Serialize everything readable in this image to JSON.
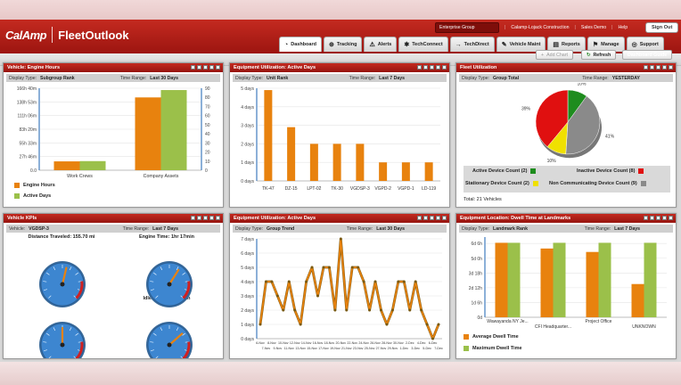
{
  "brand": {
    "company": "CalAmp",
    "product": "FleetOutlook"
  },
  "topbar": {
    "group": "Enterprise Group",
    "account": "Calamp-Lojack Construction",
    "sales": "Sales Demo",
    "help": "Help",
    "signout": "Sign Out"
  },
  "nav": {
    "tabs": [
      {
        "label": "Dashboard",
        "icon": "dashboard-icon",
        "glyph": "◔"
      },
      {
        "label": "Tracking",
        "icon": "globe-icon",
        "glyph": "⊕"
      },
      {
        "label": "Alerts",
        "icon": "alert-icon",
        "glyph": "⚠"
      },
      {
        "label": "TechConnect",
        "icon": "tech-icon",
        "glyph": "✱"
      },
      {
        "label": "TechDirect",
        "icon": "arrow-icon",
        "glyph": "→"
      },
      {
        "label": "Vehicle Maint",
        "icon": "wrench-icon",
        "glyph": "✎"
      },
      {
        "label": "Reports",
        "icon": "report-icon",
        "glyph": "▤"
      },
      {
        "label": "Manage",
        "icon": "manage-icon",
        "glyph": "⚑"
      },
      {
        "label": "Support",
        "icon": "support-icon",
        "glyph": "◎"
      }
    ]
  },
  "toolbar": {
    "add_chart": "Add Chart",
    "refresh": "Refresh",
    "guide": "Dashboard Guide"
  },
  "p1": {
    "title": "Vehicle: Engine Hours",
    "k1": "Display Type:",
    "v1": "Subgroup Rank",
    "k2": "Time Range:",
    "v2": "Last 30 Days",
    "legend": [
      "Engine Hours",
      "Active Days"
    ],
    "chart_data": {
      "type": "bar",
      "categories": [
        "Work Crews",
        "Company Assets"
      ],
      "series": [
        {
          "name": "Engine Hours",
          "values": [
            18,
            148
          ],
          "color": "#e8820e"
        },
        {
          "name": "Active Days",
          "values": [
            10,
            88
          ],
          "color": "#9bc04a"
        }
      ],
      "y_left": {
        "ticks": [
          "0.0",
          "27h 46m",
          "55h 33m",
          "83h 20m",
          "111h 06m",
          "138h 53m",
          "166h 40m"
        ],
        "max": 166.67
      },
      "y_right": {
        "ticks": [
          "0",
          "10",
          "20",
          "30",
          "40",
          "50",
          "60",
          "70",
          "80",
          "90"
        ],
        "max": 90
      }
    }
  },
  "p2": {
    "title": "Equipment Utilization: Active Days",
    "k1": "Display Type:",
    "v1": "Unit Rank",
    "k2": "Time Range:",
    "v2": "Last 7 Days",
    "chart_data": {
      "type": "bar",
      "categories": [
        "TK-47",
        "DZ-15",
        "LPT-02",
        "TK-30",
        "VGDSP-3",
        "VGPD-2",
        "VGPD-1",
        "LD-119"
      ],
      "values": [
        4.9,
        2.9,
        2.0,
        2.0,
        2.0,
        1.0,
        1.0,
        1.0
      ],
      "ylim": [
        0,
        5
      ],
      "yticks": [
        "0 days",
        "1 days",
        "2 days",
        "3 days",
        "4 days",
        "5 days"
      ],
      "color": "#e8820e"
    }
  },
  "p3": {
    "title": "Fleet Utilization",
    "k1": "Display Type:",
    "v1": "Group Total",
    "k2": "Time Range:",
    "v2": "YESTERDAY",
    "chart_data": {
      "type": "pie",
      "slices": [
        {
          "name": "Active Device Count",
          "value": 10,
          "label": "10%",
          "color": "#1e8c1e"
        },
        {
          "name": "Non Communicating Device Count",
          "value": 41,
          "label": "41%",
          "color": "#8a8a8a"
        },
        {
          "name": "Stationary Device Count",
          "value": 10,
          "label": "10%",
          "color": "#f0e000"
        },
        {
          "name": "Inactive Device Count",
          "value": 39,
          "label": "39%",
          "color": "#e01010"
        }
      ]
    },
    "legend": [
      {
        "text": "Active Device Count (2)",
        "color": "#1e8c1e"
      },
      {
        "text": "Inactive Device Count (8)",
        "color": "#e01010"
      },
      {
        "text": "Stationary Device Count (2)",
        "color": "#f0e000"
      },
      {
        "text": "Non Communicating Device Count (9)",
        "color": "#8a8a8a"
      }
    ],
    "total": "Total: 21 Vehicles"
  },
  "p4": {
    "title": "Vehicle KPIs",
    "k1": "Vehicle:",
    "v1": "VGDSP-3",
    "k2": "Time Range:",
    "v2": "Last 7 Days",
    "gauges": [
      {
        "label": "Distance Traveled: 155.70 mi",
        "value": 0.55
      },
      {
        "label": "Engine Time: 1hr 17min",
        "value": 0.62
      },
      {
        "label": "Stops: 11",
        "value": 0.5
      },
      {
        "label": "Idle Time: 0hr 24min",
        "value": 0.68
      }
    ]
  },
  "p5": {
    "title": "Equipment Utilization: Active Days",
    "k1": "Display Type:",
    "v1": "Group Trend",
    "k2": "Time Range:",
    "v2": "Last 30 Days",
    "chart_data": {
      "type": "line",
      "color": "#e8820e",
      "x": [
        "6-Nov",
        "7-Nov",
        "8-Nov",
        "9-Nov",
        "10-Nov",
        "11-Nov",
        "12-Nov",
        "13-Nov",
        "14-Nov",
        "15-Nov",
        "16-Nov",
        "17-Nov",
        "18-Nov",
        "19-Nov",
        "20-Nov",
        "21-Nov",
        "22-Nov",
        "23-Nov",
        "24-Nov",
        "25-Nov",
        "26-Nov",
        "27-Nov",
        "28-Nov",
        "29-Nov",
        "30-Nov",
        "1-Dec",
        "2-Dec",
        "3-Dec",
        "4-Dec",
        "5-Dec",
        "6-Dec",
        "7-Dec"
      ],
      "values": [
        1,
        4,
        4,
        3,
        2,
        4,
        2,
        1,
        4,
        5,
        3,
        5,
        5,
        2,
        7,
        2,
        5,
        5,
        4,
        2,
        4,
        2,
        1,
        2,
        4,
        4,
        2,
        4,
        2,
        1,
        0,
        1
      ],
      "ylim": [
        0,
        7
      ],
      "yticks": [
        "0 days",
        "1 days",
        "2 days",
        "3 days",
        "4 days",
        "5 days",
        "6 days",
        "7 days"
      ]
    }
  },
  "p6": {
    "title": "Equipment Location: Dwell Time at Landmarks",
    "k1": "Display Type:",
    "v1": "Landmark Rank",
    "k2": "Time Range:",
    "v2": "Last 7 Days",
    "legend": [
      "Average Dwell Time",
      "Maximum Dwell Time"
    ],
    "chart_data": {
      "type": "bar",
      "categories": [
        "Wawayanda NY Je...",
        "CFI Headquarter...",
        "Project Office",
        "UNKNOWN"
      ],
      "series": [
        {
          "name": "Average Dwell Time",
          "values": [
            6.5,
            6.0,
            5.7,
            2.9
          ],
          "color": "#e8820e"
        },
        {
          "name": "Maximum Dwell Time",
          "values": [
            6.5,
            6.5,
            6.5,
            6.5
          ],
          "color": "#9bc04a"
        }
      ],
      "yticks": [
        "0d",
        "1d 6h",
        "2d 12h",
        "3d 18h",
        "5d 0h",
        "6d 6h"
      ],
      "ylim": [
        0,
        7
      ]
    }
  }
}
